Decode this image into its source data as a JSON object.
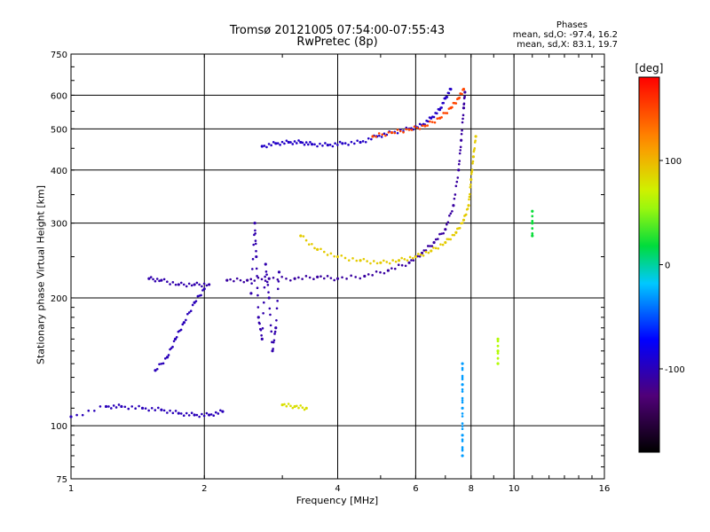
{
  "header": {
    "title_line1": "Tromsø 20121005 07:54:00-07:55:43",
    "title_line2": "RwPretec (8p)",
    "stats_title": "Phases",
    "stats_o": "mean, sd,O: -97.4, 16.2",
    "stats_x": "mean, sd,X: 83.1, 19.7"
  },
  "chart_data": {
    "type": "scatter",
    "xlabel": "Frequency [MHz]",
    "ylabel": "Stationary phase Virtual Height [km]",
    "xscale": "log",
    "yscale": "log",
    "xlim": [
      1,
      16
    ],
    "ylim": [
      75,
      750
    ],
    "xticks": [
      1,
      2,
      4,
      6,
      8,
      10,
      16
    ],
    "yticks": [
      75,
      100,
      200,
      300,
      400,
      500,
      600,
      750
    ],
    "grid": true,
    "colorbar": {
      "label": "[deg]",
      "ticks": [
        100,
        0,
        -100
      ],
      "range": [
        -180,
        180
      ]
    },
    "traces": [
      {
        "name": "",
        "phase": -100,
        "points": [
          [
            1.0,
            105
          ],
          [
            1.2,
            111
          ],
          [
            1.3,
            111
          ],
          [
            1.45,
            110
          ],
          [
            1.6,
            109
          ],
          [
            1.75,
            107
          ],
          [
            1.9,
            106
          ],
          [
            2.05,
            106
          ],
          [
            2.2,
            108
          ]
        ]
      },
      {
        "name": "",
        "phase": -105,
        "points": [
          [
            1.5,
            222
          ],
          [
            1.6,
            220
          ],
          [
            1.75,
            215
          ],
          [
            1.9,
            215
          ],
          [
            2.05,
            215
          ]
        ]
      },
      {
        "name": "",
        "phase": -100,
        "points": [
          [
            1.55,
            135
          ],
          [
            1.65,
            145
          ],
          [
            1.72,
            160
          ],
          [
            1.8,
            175
          ],
          [
            1.9,
            195
          ],
          [
            2.0,
            210
          ]
        ]
      },
      {
        "name": "",
        "phase": -110,
        "points": [
          [
            2.25,
            220
          ],
          [
            2.5,
            220
          ],
          [
            2.8,
            222
          ],
          [
            3.2,
            222
          ],
          [
            3.6,
            224
          ],
          [
            4.0,
            222
          ],
          [
            4.6,
            225
          ],
          [
            5.2,
            232
          ],
          [
            5.8,
            242
          ],
          [
            6.2,
            255
          ],
          [
            6.6,
            270
          ],
          [
            7.0,
            290
          ],
          [
            7.3,
            330
          ],
          [
            7.5,
            400
          ],
          [
            7.6,
            470
          ],
          [
            7.7,
            560
          ],
          [
            7.75,
            610
          ]
        ]
      },
      {
        "name": "",
        "phase": -105,
        "points": [
          [
            2.55,
            205
          ],
          [
            2.6,
            300
          ],
          [
            2.62,
            250
          ],
          [
            2.65,
            180
          ],
          [
            2.7,
            160
          ],
          [
            2.75,
            240
          ],
          [
            2.8,
            200
          ],
          [
            2.85,
            150
          ],
          [
            2.9,
            170
          ],
          [
            2.95,
            230
          ]
        ]
      },
      {
        "name": "",
        "phase": -95,
        "points": [
          [
            2.7,
            455
          ],
          [
            2.9,
            462
          ],
          [
            3.1,
            465
          ],
          [
            3.3,
            465
          ],
          [
            3.5,
            460
          ],
          [
            3.8,
            458
          ],
          [
            4.1,
            462
          ],
          [
            4.5,
            465
          ],
          [
            4.9,
            480
          ],
          [
            5.3,
            490
          ],
          [
            5.8,
            500
          ],
          [
            6.2,
            510
          ],
          [
            6.5,
            530
          ],
          [
            6.8,
            555
          ],
          [
            7.0,
            590
          ],
          [
            7.2,
            620
          ]
        ]
      },
      {
        "name": "",
        "phase": 90,
        "points": [
          [
            3.3,
            280
          ],
          [
            3.6,
            260
          ],
          [
            4.0,
            250
          ],
          [
            4.5,
            245
          ],
          [
            5.0,
            242
          ],
          [
            5.5,
            245
          ],
          [
            6.0,
            250
          ],
          [
            6.5,
            258
          ],
          [
            7.0,
            270
          ],
          [
            7.4,
            285
          ],
          [
            7.7,
            305
          ],
          [
            7.9,
            330
          ],
          [
            8.0,
            380
          ],
          [
            8.1,
            430
          ],
          [
            8.2,
            480
          ]
        ]
      },
      {
        "name": "",
        "phase": 150,
        "points": [
          [
            4.8,
            480
          ],
          [
            5.3,
            490
          ],
          [
            5.8,
            498
          ],
          [
            6.3,
            508
          ],
          [
            6.8,
            530
          ],
          [
            7.2,
            560
          ],
          [
            7.5,
            590
          ],
          [
            7.7,
            620
          ]
        ]
      },
      {
        "name": "",
        "phase": 80,
        "points": [
          [
            3.0,
            112
          ],
          [
            3.2,
            111
          ],
          [
            3.4,
            110
          ]
        ]
      },
      {
        "name": "",
        "phase": 60,
        "points": [
          [
            9.2,
            140
          ],
          [
            9.2,
            150
          ],
          [
            9.2,
            160
          ]
        ]
      },
      {
        "name": "",
        "phase": 20,
        "points": [
          [
            11.0,
            280
          ],
          [
            11.0,
            300
          ],
          [
            11.0,
            320
          ]
        ]
      },
      {
        "name": "",
        "phase": -30,
        "points": [
          [
            7.65,
            85
          ],
          [
            7.65,
            95
          ],
          [
            7.65,
            110
          ],
          [
            7.65,
            125
          ],
          [
            7.65,
            140
          ]
        ]
      }
    ]
  }
}
